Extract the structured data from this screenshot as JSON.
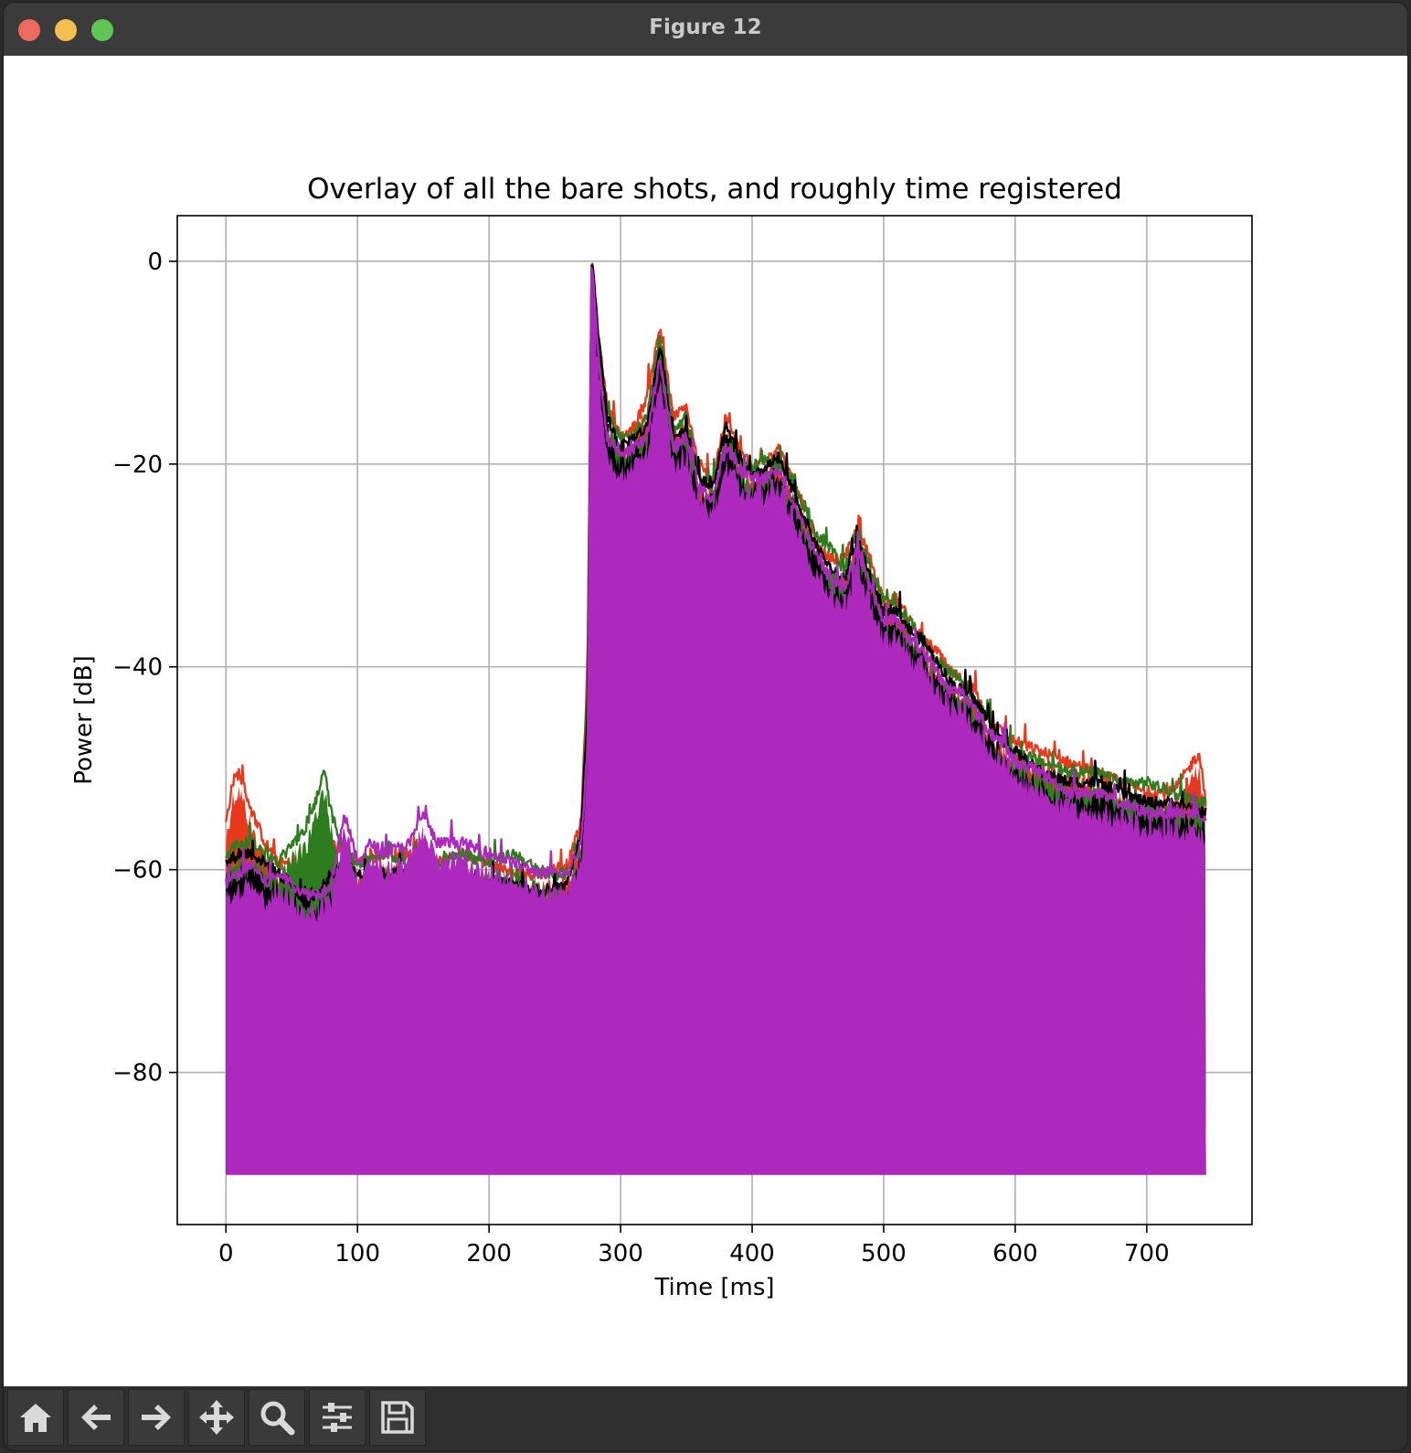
{
  "window": {
    "title": "Figure 12"
  },
  "toolbar": {
    "buttons": [
      {
        "name": "home-icon",
        "tooltip": "Reset original view"
      },
      {
        "name": "back-arrow-icon",
        "tooltip": "Back to previous view"
      },
      {
        "name": "forward-arrow-icon",
        "tooltip": "Forward to next view"
      },
      {
        "name": "pan-icon",
        "tooltip": "Pan axes"
      },
      {
        "name": "zoom-icon",
        "tooltip": "Zoom to rectangle"
      },
      {
        "name": "configure-subplots-icon",
        "tooltip": "Configure subplots"
      },
      {
        "name": "save-icon",
        "tooltip": "Save the figure"
      }
    ]
  },
  "chart_data": {
    "type": "line",
    "title": "Overlay of all the bare shots, and roughly time registered",
    "xlabel": "Time [ms]",
    "ylabel": "Power [dB]",
    "xlim": [
      -37,
      780
    ],
    "ylim": [
      -95,
      4.5
    ],
    "xticks": [
      0,
      100,
      200,
      300,
      400,
      500,
      600,
      700
    ],
    "yticks": [
      0,
      -20,
      -40,
      -60,
      -80
    ],
    "ytick_labels": [
      "0",
      "−20",
      "−40",
      "−60",
      "−80"
    ],
    "grid": true,
    "noise_floor": -90,
    "series": [
      {
        "color": "#e8391c",
        "x": [
          0,
          5,
          10,
          15,
          20,
          30,
          40,
          50,
          60,
          70,
          80,
          90,
          100,
          120,
          140,
          160,
          180,
          200,
          220,
          240,
          260,
          270,
          275,
          278,
          283,
          290,
          300,
          310,
          320,
          330,
          340,
          350,
          360,
          370,
          380,
          390,
          400,
          410,
          420,
          430,
          440,
          450,
          460,
          470,
          480,
          490,
          500,
          510,
          520,
          530,
          540,
          550,
          560,
          570,
          580,
          590,
          600,
          620,
          640,
          660,
          680,
          700,
          720,
          740,
          745
        ],
        "y": [
          -56,
          -52,
          -51,
          -53,
          -55,
          -58,
          -60,
          -60,
          -62,
          -59,
          -58,
          -59,
          -60,
          -59,
          -59,
          -60,
          -59,
          -60,
          -61,
          -61,
          -60,
          -56,
          -40,
          0,
          -8,
          -15,
          -18,
          -17,
          -14,
          -7,
          -16,
          -15,
          -21,
          -22,
          -16,
          -19,
          -21,
          -20,
          -19,
          -22,
          -25,
          -29,
          -30,
          -30,
          -27,
          -30,
          -34,
          -34,
          -36,
          -38,
          -39,
          -41,
          -42,
          -43,
          -46,
          -47,
          -48,
          -49,
          -50,
          -51,
          -52,
          -53,
          -53,
          -49,
          -54
        ]
      },
      {
        "color": "#2d7d1e",
        "x": [
          0,
          10,
          20,
          30,
          40,
          50,
          60,
          70,
          75,
          80,
          90,
          100,
          120,
          140,
          160,
          180,
          200,
          220,
          240,
          260,
          270,
          275,
          278,
          283,
          290,
          300,
          310,
          320,
          330,
          340,
          350,
          360,
          370,
          380,
          390,
          400,
          410,
          420,
          430,
          440,
          450,
          460,
          470,
          480,
          490,
          500,
          510,
          520,
          530,
          540,
          550,
          560,
          570,
          580,
          590,
          600,
          620,
          640,
          660,
          680,
          700,
          720,
          740,
          745
        ],
        "y": [
          -59,
          -58,
          -58,
          -59,
          -60,
          -58,
          -57,
          -53,
          -51,
          -55,
          -59,
          -60,
          -59,
          -60,
          -60,
          -59,
          -60,
          -59,
          -61,
          -61,
          -57,
          -42,
          0,
          -9,
          -16,
          -18,
          -18,
          -16,
          -8,
          -17,
          -16,
          -22,
          -23,
          -18,
          -20,
          -21,
          -20,
          -21,
          -22,
          -25,
          -28,
          -29,
          -31,
          -27,
          -31,
          -34,
          -35,
          -36,
          -38,
          -40,
          -41,
          -42,
          -44,
          -46,
          -48,
          -49,
          -50,
          -51,
          -51,
          -52,
          -52,
          -53,
          -54,
          -54
        ]
      },
      {
        "color": "#000000",
        "x": [
          0,
          10,
          20,
          30,
          40,
          50,
          60,
          70,
          80,
          90,
          100,
          120,
          140,
          160,
          180,
          200,
          220,
          240,
          260,
          270,
          275,
          278,
          283,
          290,
          300,
          310,
          320,
          330,
          340,
          350,
          360,
          370,
          380,
          390,
          400,
          410,
          420,
          430,
          440,
          450,
          460,
          470,
          480,
          490,
          500,
          510,
          520,
          530,
          540,
          550,
          560,
          570,
          580,
          590,
          600,
          620,
          640,
          660,
          680,
          700,
          720,
          740,
          745
        ],
        "y": [
          -60,
          -59,
          -59,
          -60,
          -61,
          -62,
          -64,
          -63,
          -61,
          -60,
          -61,
          -61,
          -61,
          -62,
          -62,
          -62,
          -62,
          -63,
          -62,
          -57,
          -45,
          0,
          -8,
          -16,
          -19,
          -18,
          -17,
          -9,
          -18,
          -17,
          -22,
          -23,
          -17,
          -20,
          -22,
          -21,
          -20,
          -23,
          -26,
          -29,
          -31,
          -32,
          -28,
          -32,
          -35,
          -35,
          -37,
          -38,
          -40,
          -42,
          -43,
          -44,
          -46,
          -48,
          -49,
          -51,
          -52,
          -52,
          -53,
          -54,
          -54,
          -55,
          -55
        ]
      },
      {
        "color": "#ad28bd",
        "x": [
          0,
          10,
          20,
          30,
          40,
          50,
          60,
          70,
          80,
          90,
          100,
          110,
          120,
          140,
          150,
          160,
          180,
          200,
          220,
          240,
          260,
          270,
          275,
          278,
          283,
          290,
          300,
          310,
          320,
          330,
          340,
          350,
          360,
          370,
          380,
          390,
          400,
          410,
          420,
          430,
          440,
          450,
          460,
          470,
          480,
          490,
          500,
          510,
          520,
          530,
          540,
          550,
          560,
          570,
          580,
          590,
          600,
          620,
          640,
          660,
          680,
          700,
          720,
          740,
          745
        ],
        "y": [
          -62,
          -61,
          -60,
          -62,
          -61,
          -62,
          -63,
          -63,
          -62,
          -55,
          -60,
          -58,
          -59,
          -58,
          -55,
          -58,
          -58,
          -59,
          -60,
          -61,
          -61,
          -58,
          -48,
          0,
          -10,
          -18,
          -20,
          -19,
          -18,
          -10,
          -19,
          -18,
          -23,
          -24,
          -19,
          -21,
          -22,
          -22,
          -21,
          -24,
          -27,
          -30,
          -32,
          -33,
          -29,
          -33,
          -36,
          -36,
          -38,
          -39,
          -41,
          -43,
          -43,
          -45,
          -47,
          -48,
          -50,
          -51,
          -53,
          -53,
          -54,
          -55,
          -55,
          -55,
          -56
        ]
      }
    ]
  }
}
